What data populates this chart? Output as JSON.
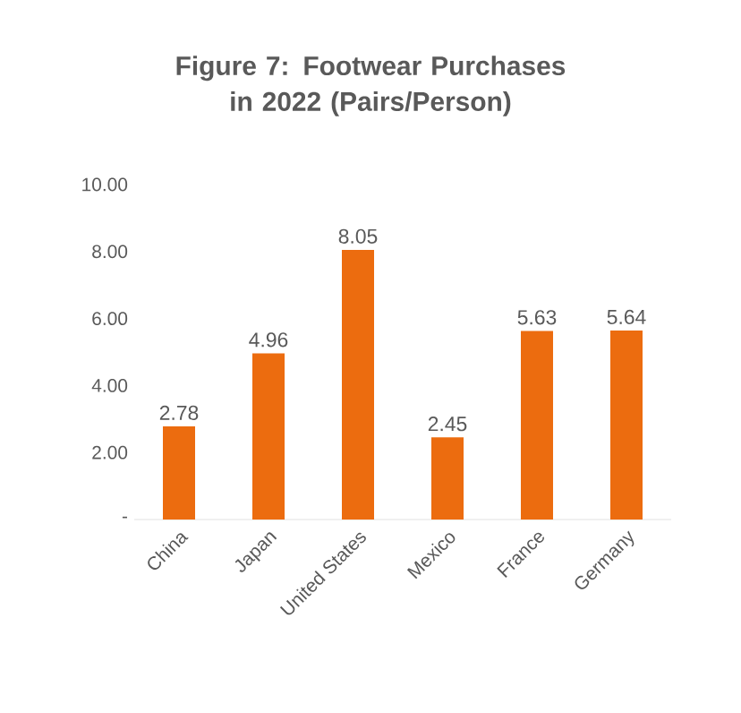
{
  "chart_data": {
    "type": "bar",
    "title": "Figure 7:  Footwear Purchases in 2022 (Pairs/Person)",
    "categories": [
      "China",
      "Japan",
      "United States",
      "Mexico",
      "France",
      "Germany"
    ],
    "values": [
      2.78,
      4.96,
      8.05,
      2.45,
      5.63,
      5.64
    ],
    "color": "#ec6c0f",
    "ylim": [
      0,
      10
    ],
    "yticks": [
      {
        "value": 0,
        "label": "-"
      },
      {
        "value": 2,
        "label": "2.00"
      },
      {
        "value": 4,
        "label": "4.00"
      },
      {
        "value": 6,
        "label": "6.00"
      },
      {
        "value": 8,
        "label": "8.00"
      },
      {
        "value": 10,
        "label": "10.00"
      }
    ],
    "data_labels": true
  }
}
